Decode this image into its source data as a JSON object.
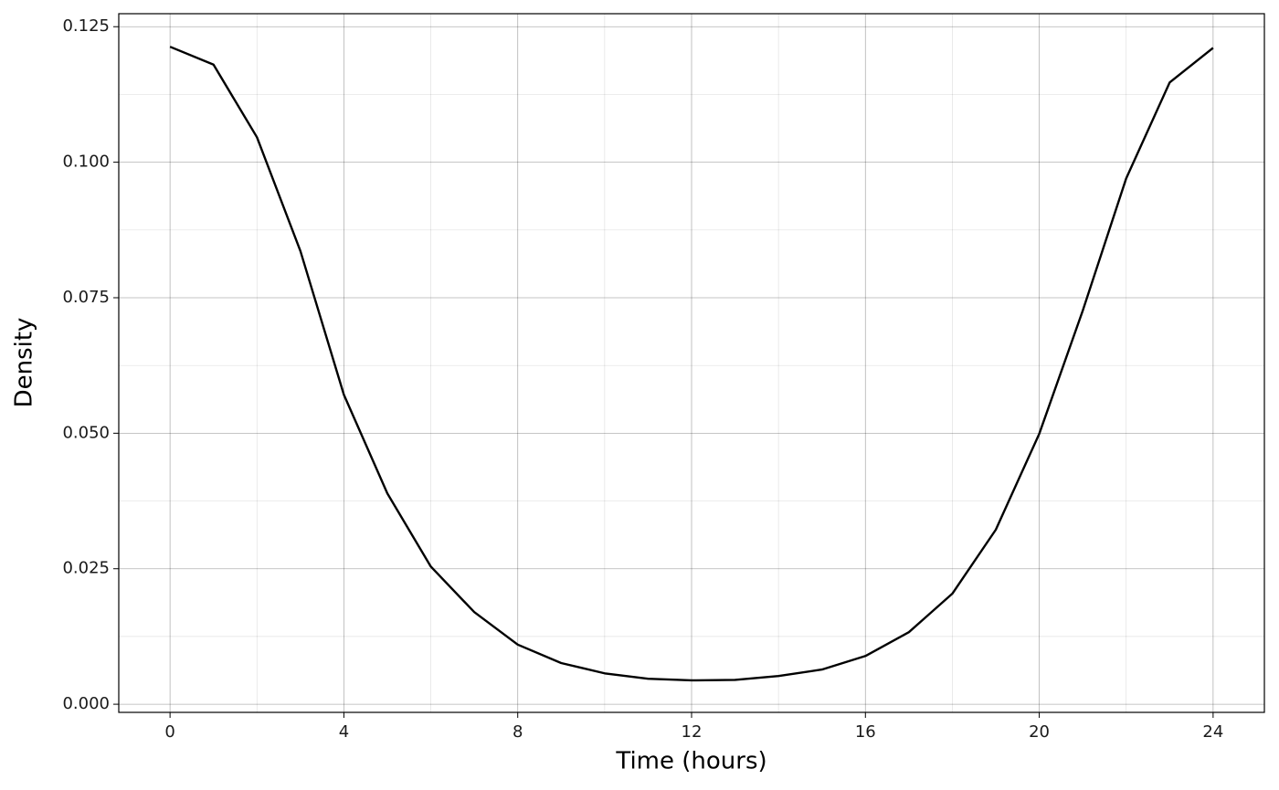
{
  "chart_data": {
    "type": "line",
    "x_label": "Time (hours)",
    "y_label": "Density",
    "x": [
      0,
      1,
      2,
      3,
      4,
      5,
      6,
      7,
      8,
      9,
      10,
      11,
      12,
      13,
      14,
      15,
      16,
      17,
      18,
      19,
      20,
      21,
      22,
      23,
      24
    ],
    "series": [
      {
        "color": "#000000",
        "values": [
          0.1213,
          0.118,
          0.1046,
          0.0836,
          0.0571,
          0.0389,
          0.0254,
          0.017,
          0.011,
          0.0076,
          0.0057,
          0.0047,
          0.0044,
          0.0045,
          0.0052,
          0.0064,
          0.0089,
          0.0133,
          0.0204,
          0.0322,
          0.0499,
          0.0726,
          0.097,
          0.1147,
          0.1211
        ]
      }
    ],
    "xlim": [
      -1.18,
      25.18
    ],
    "ylim": [
      -0.0015,
      0.1274
    ],
    "xticks": [
      0,
      4,
      8,
      12,
      16,
      20,
      24
    ],
    "xminorticks": [
      2,
      6,
      10,
      14,
      18,
      22
    ],
    "yticks": [
      {
        "value": 0,
        "label": "0.000"
      },
      {
        "value": 0.025,
        "label": "0.025"
      },
      {
        "value": 0.05,
        "label": "0.050"
      },
      {
        "value": 0.075,
        "label": "0.075"
      },
      {
        "value": 0.1,
        "label": "0.100"
      },
      {
        "value": 0.125,
        "label": "0.125"
      }
    ],
    "yminorticks": [
      0.0125,
      0.0375,
      0.0625,
      0.0875,
      0.1125
    ],
    "grid": true
  }
}
